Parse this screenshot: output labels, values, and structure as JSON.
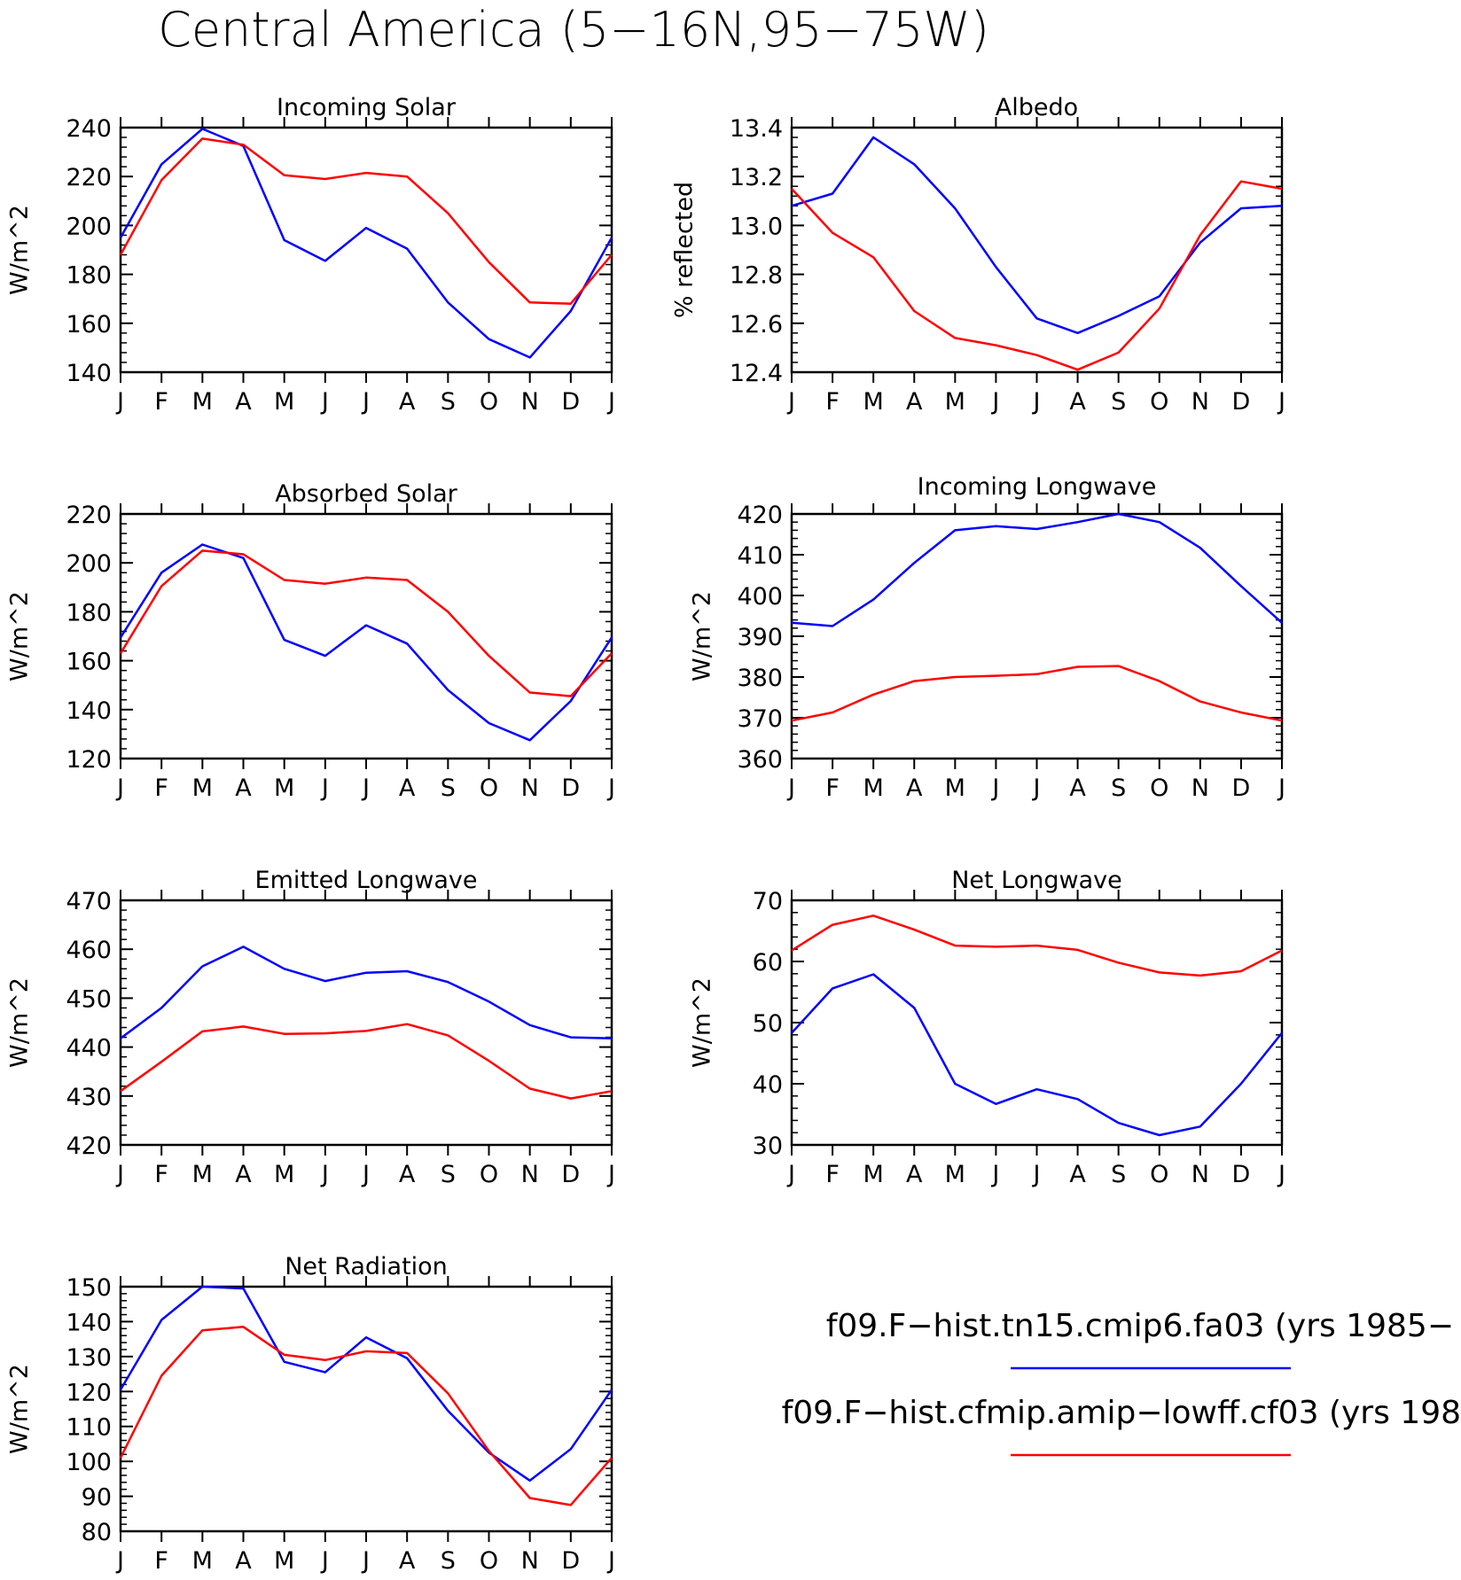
{
  "figure": {
    "title": "Central America (5−16N,95−75W)"
  },
  "colors": {
    "series1": "#0000ff",
    "series2": "#ff0000",
    "axes": "#000000",
    "background": "#ffffff"
  },
  "legend": {
    "entries": [
      {
        "label": "f09.F−hist.tn15.cmip6.fa03 (yrs 1985−",
        "color": "#0000ff"
      },
      {
        "label": "f09.F−hist.cfmip.amip−lowff.cf03 (yrs 198",
        "color": "#ff0000"
      }
    ]
  },
  "chart_data": [
    {
      "type": "line",
      "title": "Incoming Solar",
      "ylabel": "W/m^2",
      "categories": [
        "J",
        "F",
        "M",
        "A",
        "M",
        "J",
        "J",
        "A",
        "S",
        "O",
        "N",
        "D",
        "J"
      ],
      "ylim": [
        140,
        240
      ],
      "yticks": [
        140,
        160,
        180,
        200,
        220,
        240
      ],
      "ytick_labels": [
        "140",
        "160",
        "180",
        "200",
        "220",
        "240"
      ],
      "series": [
        {
          "color": "#0000ff",
          "values": [
            195,
            225,
            239.5,
            232.5,
            194,
            185.5,
            199,
            190.5,
            168.5,
            153.5,
            146,
            165,
            195
          ]
        },
        {
          "color": "#ff0000",
          "values": [
            188,
            218.5,
            235.5,
            233,
            220.5,
            219,
            221.5,
            220,
            205,
            185,
            168.5,
            168,
            188
          ]
        }
      ]
    },
    {
      "type": "line",
      "title": "Albedo",
      "ylabel": "% reflected",
      "categories": [
        "J",
        "F",
        "M",
        "A",
        "M",
        "J",
        "J",
        "A",
        "S",
        "O",
        "N",
        "D",
        "J"
      ],
      "ylim": [
        12.4,
        13.4
      ],
      "yticks": [
        12.4,
        12.6,
        12.8,
        13.0,
        13.2,
        13.4
      ],
      "ytick_labels": [
        "12.4",
        "12.6",
        "12.8",
        "13.0",
        "13.2",
        "13.4"
      ],
      "series": [
        {
          "color": "#0000ff",
          "values": [
            13.08,
            13.13,
            13.36,
            13.25,
            13.07,
            12.83,
            12.62,
            12.56,
            12.63,
            12.71,
            12.93,
            13.07,
            13.08
          ]
        },
        {
          "color": "#ff0000",
          "values": [
            13.15,
            12.97,
            12.87,
            12.65,
            12.54,
            12.51,
            12.47,
            12.41,
            12.48,
            12.66,
            12.96,
            13.18,
            13.15
          ]
        }
      ]
    },
    {
      "type": "line",
      "title": "Absorbed Solar",
      "ylabel": "W/m^2",
      "categories": [
        "J",
        "F",
        "M",
        "A",
        "M",
        "J",
        "J",
        "A",
        "S",
        "O",
        "N",
        "D",
        "J"
      ],
      "ylim": [
        120,
        220
      ],
      "yticks": [
        120,
        140,
        160,
        180,
        200,
        220
      ],
      "ytick_labels": [
        "120",
        "140",
        "160",
        "180",
        "200",
        "220"
      ],
      "series": [
        {
          "color": "#0000ff",
          "values": [
            169.5,
            196,
            207.5,
            202,
            168.5,
            162,
            174.5,
            167,
            148,
            134.5,
            127.5,
            143.5,
            169.5
          ]
        },
        {
          "color": "#ff0000",
          "values": [
            163,
            190.5,
            205,
            203.5,
            193,
            191.5,
            194,
            193,
            180,
            162,
            147,
            145.5,
            163
          ]
        }
      ]
    },
    {
      "type": "line",
      "title": "Incoming Longwave",
      "ylabel": "W/m^2",
      "categories": [
        "J",
        "F",
        "M",
        "A",
        "M",
        "J",
        "J",
        "A",
        "S",
        "O",
        "N",
        "D",
        "J"
      ],
      "ylim": [
        360,
        420
      ],
      "yticks": [
        360,
        370,
        380,
        390,
        400,
        410,
        420
      ],
      "ytick_labels": [
        "360",
        "370",
        "380",
        "390",
        "400",
        "410",
        "420"
      ],
      "series": [
        {
          "color": "#0000ff",
          "values": [
            393.3,
            392.5,
            399,
            408,
            416,
            417,
            416.3,
            418,
            420,
            418,
            411.7,
            402.3,
            393.3
          ]
        },
        {
          "color": "#ff0000",
          "values": [
            369.3,
            371.3,
            375.7,
            379,
            380,
            380.3,
            380.7,
            382.5,
            382.7,
            379,
            374,
            371.3,
            369.3
          ]
        }
      ]
    },
    {
      "type": "line",
      "title": "Emitted Longwave",
      "ylabel": "W/m^2",
      "categories": [
        "J",
        "F",
        "M",
        "A",
        "M",
        "J",
        "J",
        "A",
        "S",
        "O",
        "N",
        "D",
        "J"
      ],
      "ylim": [
        420,
        470
      ],
      "yticks": [
        420,
        430,
        440,
        450,
        460,
        470
      ],
      "ytick_labels": [
        "420",
        "430",
        "440",
        "450",
        "460",
        "470"
      ],
      "series": [
        {
          "color": "#0000ff",
          "values": [
            441.8,
            448,
            456.5,
            460.5,
            456,
            453.5,
            455.2,
            455.5,
            453.3,
            449.3,
            444.5,
            442,
            441.8
          ]
        },
        {
          "color": "#ff0000",
          "values": [
            431,
            437,
            443.2,
            444.2,
            442.7,
            442.8,
            443.3,
            444.7,
            442.4,
            437.2,
            431.5,
            429.5,
            431
          ]
        }
      ]
    },
    {
      "type": "line",
      "title": "Net Longwave",
      "ylabel": "W/m^2",
      "categories": [
        "J",
        "F",
        "M",
        "A",
        "M",
        "J",
        "J",
        "A",
        "S",
        "O",
        "N",
        "D",
        "J"
      ],
      "ylim": [
        30,
        70
      ],
      "yticks": [
        30,
        40,
        50,
        60,
        70
      ],
      "ytick_labels": [
        "30",
        "40",
        "50",
        "60",
        "70"
      ],
      "series": [
        {
          "color": "#0000ff",
          "values": [
            48.3,
            55.6,
            57.9,
            52.4,
            40,
            36.7,
            39.1,
            37.5,
            33.6,
            31.6,
            33,
            40,
            48.3
          ]
        },
        {
          "color": "#ff0000",
          "values": [
            61.8,
            66,
            67.5,
            65.2,
            62.6,
            62.4,
            62.6,
            61.9,
            59.8,
            58.2,
            57.7,
            58.4,
            61.8
          ]
        }
      ]
    },
    {
      "type": "line",
      "title": "Net Radiation",
      "ylabel": "W/m^2",
      "categories": [
        "J",
        "F",
        "M",
        "A",
        "M",
        "J",
        "J",
        "A",
        "S",
        "O",
        "N",
        "D",
        "J"
      ],
      "ylim": [
        80,
        150
      ],
      "yticks": [
        80,
        90,
        100,
        110,
        120,
        130,
        140,
        150
      ],
      "ytick_labels": [
        "80",
        "90",
        "100",
        "110",
        "120",
        "130",
        "140",
        "150"
      ],
      "series": [
        {
          "color": "#0000ff",
          "values": [
            120.5,
            140.5,
            150,
            149.5,
            128.5,
            125.5,
            135.5,
            129.5,
            114.5,
            102.5,
            94.5,
            103.5,
            120.5
          ]
        },
        {
          "color": "#ff0000",
          "values": [
            101,
            124.5,
            137.5,
            138.5,
            130.5,
            129,
            131.5,
            131,
            119.5,
            103,
            89.5,
            87.5,
            101
          ]
        }
      ]
    }
  ]
}
